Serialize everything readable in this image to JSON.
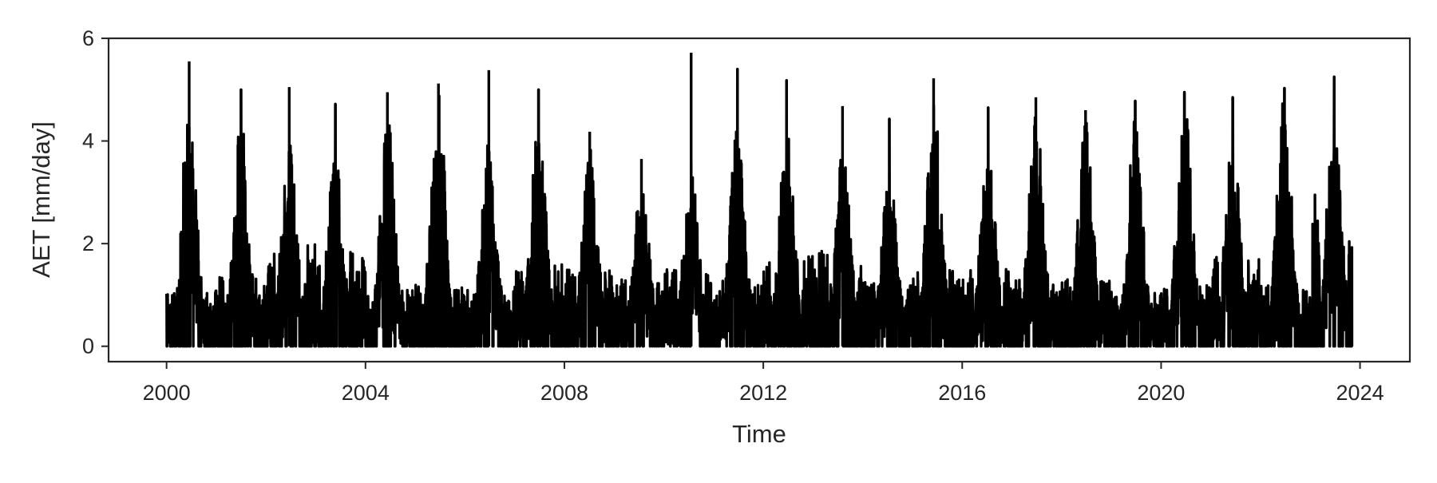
{
  "chart_data": {
    "type": "line",
    "title": "",
    "xlabel": "Time",
    "ylabel": "AET [mm/day]",
    "xlim": [
      "1998-11-01",
      "2025-01-01"
    ],
    "ylim": [
      -0.3,
      6
    ],
    "x_ticks": [
      "2000",
      "2004",
      "2008",
      "2012",
      "2016",
      "2020",
      "2024"
    ],
    "y_ticks": [
      0,
      2,
      4,
      6
    ],
    "grid": false,
    "line_color": "#000000",
    "x_start": "2000-01-01",
    "x_end": "2023-11-05",
    "series": [
      {
        "name": "",
        "peaks": [
          {
            "year": 2000,
            "peak_date": "2000-06-15",
            "peak": 5.55,
            "season_peak": 4.8,
            "winter_max": 1.1,
            "winter_zero_frac": 0.5
          },
          {
            "year": 2001,
            "peak_date": "2001-07-01",
            "peak": 5.0,
            "season_peak": 4.4,
            "winter_max": 1.4,
            "winter_zero_frac": 0.4
          },
          {
            "year": 2002,
            "peak_date": "2002-06-20",
            "peak": 5.05,
            "season_peak": 4.2,
            "winter_max": 2.0,
            "winter_zero_frac": 0.35
          },
          {
            "year": 2003,
            "peak_date": "2003-05-25",
            "peak": 4.72,
            "season_peak": 4.0,
            "winter_max": 1.9,
            "winter_zero_frac": 0.4
          },
          {
            "year": 2004,
            "peak_date": "2004-06-10",
            "peak": 4.95,
            "season_peak": 4.7,
            "winter_max": 1.1,
            "winter_zero_frac": 0.45
          },
          {
            "year": 2005,
            "peak_date": "2005-06-20",
            "peak": 5.12,
            "season_peak": 5.0,
            "winter_max": 1.2,
            "winter_zero_frac": 0.45
          },
          {
            "year": 2006,
            "peak_date": "2006-06-25",
            "peak": 5.38,
            "season_peak": 4.2,
            "winter_max": 1.1,
            "winter_zero_frac": 0.35
          },
          {
            "year": 2007,
            "peak_date": "2007-06-25",
            "peak": 5.0,
            "season_peak": 4.5,
            "winter_max": 1.6,
            "winter_zero_frac": 0.4
          },
          {
            "year": 2008,
            "peak_date": "2008-07-05",
            "peak": 4.18,
            "season_peak": 3.9,
            "winter_max": 1.5,
            "winter_zero_frac": 0.3
          },
          {
            "year": 2009,
            "peak_date": "2009-07-20",
            "peak": 3.65,
            "season_peak": 3.3,
            "winter_max": 1.3,
            "winter_zero_frac": 0.25
          },
          {
            "year": 2010,
            "peak_date": "2010-07-20",
            "peak": 5.72,
            "season_peak": 3.5,
            "winter_max": 1.5,
            "winter_zero_frac": 0.3
          },
          {
            "year": 2011,
            "peak_date": "2011-06-25",
            "peak": 5.4,
            "season_peak": 4.3,
            "winter_max": 1.3,
            "winter_zero_frac": 0.4
          },
          {
            "year": 2012,
            "peak_date": "2012-06-20",
            "peak": 5.18,
            "season_peak": 4.5,
            "winter_max": 1.8,
            "winter_zero_frac": 0.45
          },
          {
            "year": 2013,
            "peak_date": "2013-08-05",
            "peak": 4.68,
            "season_peak": 4.0,
            "winter_max": 1.9,
            "winter_zero_frac": 0.4
          },
          {
            "year": 2014,
            "peak_date": "2014-07-15",
            "peak": 4.43,
            "season_peak": 3.4,
            "winter_max": 1.4,
            "winter_zero_frac": 0.35
          },
          {
            "year": 2015,
            "peak_date": "2015-06-05",
            "peak": 5.22,
            "season_peak": 4.9,
            "winter_max": 1.5,
            "winter_zero_frac": 0.45
          },
          {
            "year": 2016,
            "peak_date": "2016-07-10",
            "peak": 4.65,
            "season_peak": 3.9,
            "winter_max": 1.5,
            "winter_zero_frac": 0.45
          },
          {
            "year": 2017,
            "peak_date": "2017-06-25",
            "peak": 4.85,
            "season_peak": 4.6,
            "winter_max": 1.3,
            "winter_zero_frac": 0.4
          },
          {
            "year": 2018,
            "peak_date": "2018-06-25",
            "peak": 4.6,
            "season_peak": 4.4,
            "winter_max": 1.3,
            "winter_zero_frac": 0.35
          },
          {
            "year": 2019,
            "peak_date": "2019-06-25",
            "peak": 4.78,
            "season_peak": 4.5,
            "winter_max": 1.1,
            "winter_zero_frac": 0.35
          },
          {
            "year": 2020,
            "peak_date": "2020-06-20",
            "peak": 4.95,
            "season_peak": 4.8,
            "winter_max": 1.2,
            "winter_zero_frac": 0.4
          },
          {
            "year": 2021,
            "peak_date": "2021-06-10",
            "peak": 4.85,
            "season_peak": 4.1,
            "winter_max": 1.8,
            "winter_zero_frac": 0.5
          },
          {
            "year": 2022,
            "peak_date": "2022-06-25",
            "peak": 5.03,
            "season_peak": 5.0,
            "winter_max": 1.2,
            "winter_zero_frac": 0.4
          },
          {
            "year": 2023,
            "peak_date": "2023-06-25",
            "peak": 5.25,
            "season_peak": 4.5,
            "winter_max": 3.0,
            "winter_zero_frac": 0.55
          }
        ]
      }
    ]
  }
}
